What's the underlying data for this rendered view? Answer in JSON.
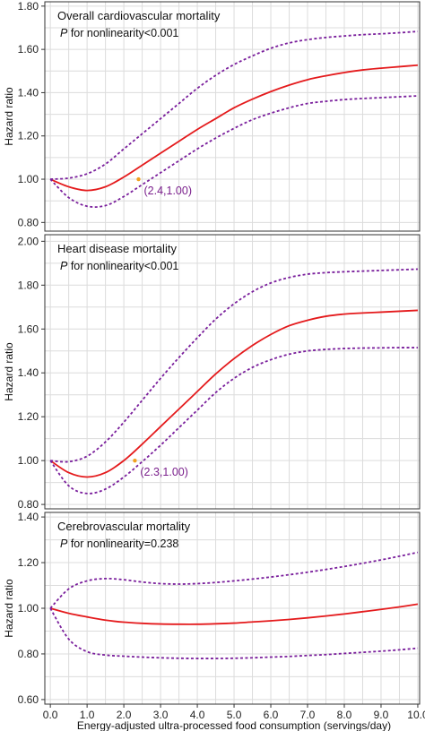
{
  "chart_data": [
    {
      "type": "line",
      "title": "Overall cardiovascular mortality",
      "note": {
        "italic": "P",
        "rest": " for nonlinearity<0.001"
      },
      "ylabel": "Hazard ratio",
      "ylim": [
        0.76,
        1.82
      ],
      "yticks": [
        "0.80",
        "1.00",
        "1.20",
        "1.40",
        "1.60",
        "1.80"
      ],
      "x": [
        0.0,
        0.5,
        1.0,
        1.5,
        2.0,
        2.5,
        3.0,
        3.5,
        4.0,
        4.5,
        5.0,
        5.5,
        6.0,
        6.5,
        7.0,
        7.5,
        8.0,
        8.5,
        9.0,
        9.5,
        10.0
      ],
      "series": [
        {
          "role": "estimate",
          "color": "#e41a1c",
          "dash": false,
          "values": [
            1.0,
            0.965,
            0.948,
            0.965,
            1.01,
            1.065,
            1.12,
            1.175,
            1.23,
            1.28,
            1.33,
            1.37,
            1.405,
            1.435,
            1.46,
            1.478,
            1.493,
            1.505,
            1.513,
            1.52,
            1.527
          ]
        },
        {
          "role": "upper",
          "color": "#7a1f9c",
          "dash": true,
          "values": [
            1.0,
            1.005,
            1.025,
            1.07,
            1.14,
            1.21,
            1.28,
            1.35,
            1.42,
            1.48,
            1.53,
            1.57,
            1.605,
            1.63,
            1.645,
            1.655,
            1.662,
            1.668,
            1.672,
            1.677,
            1.683
          ]
        },
        {
          "role": "lower",
          "color": "#7a1f9c",
          "dash": true,
          "values": [
            1.0,
            0.915,
            0.875,
            0.878,
            0.92,
            0.975,
            1.03,
            1.085,
            1.14,
            1.19,
            1.235,
            1.275,
            1.305,
            1.33,
            1.35,
            1.36,
            1.368,
            1.373,
            1.377,
            1.381,
            1.385
          ]
        }
      ],
      "marker": {
        "x": 2.4,
        "y": 1.0,
        "label": "(2.4,1.00)",
        "color": "#f0a020"
      }
    },
    {
      "type": "line",
      "title": "Heart disease mortality",
      "note": {
        "italic": "P",
        "rest": " for nonlinearity<0.001"
      },
      "ylabel": "Hazard ratio",
      "ylim": [
        0.78,
        2.03
      ],
      "yticks": [
        "0.80",
        "1.00",
        "1.20",
        "1.40",
        "1.60",
        "1.80",
        "2.00"
      ],
      "x": [
        0.0,
        0.5,
        1.0,
        1.5,
        2.0,
        2.5,
        3.0,
        3.5,
        4.0,
        4.5,
        5.0,
        5.5,
        6.0,
        6.5,
        7.0,
        7.5,
        8.0,
        8.5,
        9.0,
        9.5,
        10.0
      ],
      "series": [
        {
          "role": "estimate",
          "color": "#e41a1c",
          "dash": false,
          "values": [
            1.0,
            0.945,
            0.925,
            0.945,
            1.0,
            1.075,
            1.155,
            1.235,
            1.315,
            1.395,
            1.465,
            1.525,
            1.575,
            1.615,
            1.64,
            1.658,
            1.668,
            1.673,
            1.677,
            1.681,
            1.685
          ]
        },
        {
          "role": "upper",
          "color": "#7a1f9c",
          "dash": true,
          "values": [
            1.0,
            0.995,
            1.02,
            1.085,
            1.175,
            1.275,
            1.375,
            1.47,
            1.56,
            1.645,
            1.715,
            1.77,
            1.81,
            1.835,
            1.85,
            1.857,
            1.861,
            1.864,
            1.867,
            1.87,
            1.873
          ]
        },
        {
          "role": "lower",
          "color": "#7a1f9c",
          "dash": true,
          "values": [
            1.0,
            0.885,
            0.85,
            0.87,
            0.925,
            0.995,
            1.07,
            1.15,
            1.23,
            1.31,
            1.375,
            1.425,
            1.46,
            1.485,
            1.5,
            1.507,
            1.511,
            1.513,
            1.514,
            1.515,
            1.515
          ]
        }
      ],
      "marker": {
        "x": 2.3,
        "y": 1.0,
        "label": "(2.3,1.00)",
        "color": "#f0a020"
      }
    },
    {
      "type": "line",
      "title": "Cerebrovascular mortality",
      "note": {
        "italic": "P",
        "rest": " for nonlinearity=0.238"
      },
      "ylabel": "Hazard ratio",
      "ylim": [
        0.58,
        1.42
      ],
      "yticks": [
        "0.60",
        "0.80",
        "1.00",
        "1.20",
        "1.40"
      ],
      "xlabel": "Energy-adjusted ultra-processed food consumption (servings/day)",
      "xticks": [
        "0.0",
        "1.0",
        "2.0",
        "3.0",
        "4.0",
        "5.0",
        "6.0",
        "7.0",
        "8.0",
        "9.0",
        "10.0"
      ],
      "x": [
        0.0,
        0.5,
        1.0,
        1.5,
        2.0,
        2.5,
        3.0,
        3.5,
        4.0,
        4.5,
        5.0,
        5.5,
        6.0,
        6.5,
        7.0,
        7.5,
        8.0,
        8.5,
        9.0,
        9.5,
        10.0
      ],
      "series": [
        {
          "role": "estimate",
          "color": "#e41a1c",
          "dash": false,
          "values": [
            1.0,
            0.978,
            0.962,
            0.948,
            0.939,
            0.934,
            0.931,
            0.93,
            0.93,
            0.932,
            0.935,
            0.94,
            0.945,
            0.951,
            0.958,
            0.966,
            0.975,
            0.985,
            0.995,
            1.006,
            1.018
          ]
        },
        {
          "role": "upper",
          "color": "#7a1f9c",
          "dash": true,
          "values": [
            1.0,
            1.085,
            1.12,
            1.13,
            1.125,
            1.115,
            1.108,
            1.106,
            1.108,
            1.113,
            1.12,
            1.128,
            1.137,
            1.147,
            1.158,
            1.17,
            1.183,
            1.197,
            1.212,
            1.228,
            1.245
          ]
        },
        {
          "role": "lower",
          "color": "#7a1f9c",
          "dash": true,
          "values": [
            1.0,
            0.865,
            0.81,
            0.795,
            0.79,
            0.786,
            0.783,
            0.781,
            0.78,
            0.78,
            0.781,
            0.783,
            0.786,
            0.789,
            0.793,
            0.797,
            0.802,
            0.807,
            0.812,
            0.818,
            0.825
          ]
        }
      ]
    }
  ]
}
